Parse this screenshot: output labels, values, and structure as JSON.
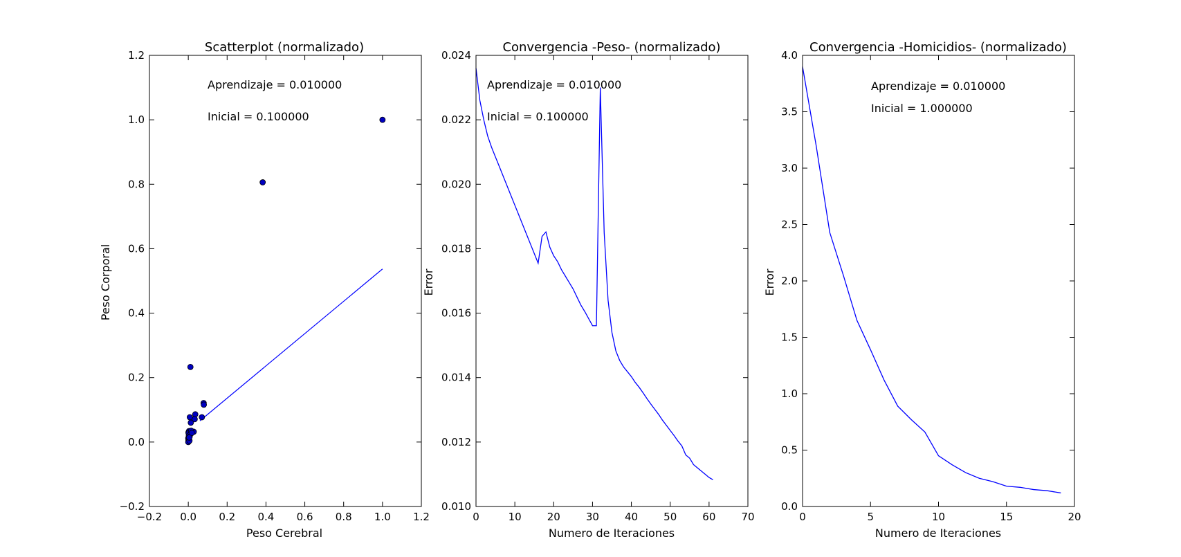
{
  "chart_data": [
    {
      "type": "scatter",
      "title": "Scatterplot (normalizado)",
      "xlabel": "Peso Cerebral",
      "ylabel": "Peso Corporal",
      "xlim": [
        -0.2,
        1.2
      ],
      "ylim": [
        -0.2,
        1.2
      ],
      "xticks": [
        -0.2,
        0.0,
        0.2,
        0.4,
        0.6,
        0.8,
        1.0,
        1.2
      ],
      "yticks": [
        -0.2,
        0.0,
        0.2,
        0.4,
        0.6,
        0.8,
        1.0,
        1.2
      ],
      "xtick_labels": [
        "−0.2",
        "0.0",
        "0.2",
        "0.4",
        "0.6",
        "0.8",
        "1.0",
        "1.2"
      ],
      "ytick_labels": [
        "−0.2",
        "0.0",
        "0.2",
        "0.4",
        "0.6",
        "0.8",
        "1.0",
        "1.2"
      ],
      "marker_color": "#0000bf",
      "line_color": "#0000ff",
      "points": [
        [
          1.0,
          1.0
        ],
        [
          0.383,
          0.806
        ],
        [
          0.011,
          0.233
        ],
        [
          0.079,
          0.121
        ],
        [
          0.08,
          0.116
        ],
        [
          0.07,
          0.077
        ],
        [
          0.036,
          0.086
        ],
        [
          0.033,
          0.071
        ],
        [
          0.028,
          0.032
        ],
        [
          0.013,
          0.06
        ],
        [
          0.008,
          0.077
        ],
        [
          0.004,
          0.034
        ],
        [
          0.001,
          0.03
        ],
        [
          0.002,
          0.027
        ],
        [
          0.01,
          0.024
        ],
        [
          0.003,
          0.02
        ],
        [
          0.007,
          0.017
        ],
        [
          0.0,
          0.012
        ],
        [
          0.004,
          0.009
        ],
        [
          0.001,
          0.006
        ],
        [
          0.002,
          0.002
        ],
        [
          0.0,
          0.0
        ],
        [
          0.006,
          0.004
        ],
        [
          0.015,
          0.035
        ],
        [
          0.018,
          0.028
        ],
        [
          0.005,
          0.014
        ]
      ],
      "fit_line": [
        [
          0.06,
          0.066
        ],
        [
          1.0,
          0.537
        ]
      ],
      "annotations": [
        "Aprendizaje = 0.010000",
        "Inicial = 0.100000"
      ]
    },
    {
      "type": "line",
      "title": "Convergencia -Peso- (normalizado)",
      "xlabel": "Numero de Iteraciones",
      "ylabel": "Error",
      "xlim": [
        0,
        70
      ],
      "ylim": [
        0.01,
        0.024
      ],
      "xticks": [
        0,
        10,
        20,
        30,
        40,
        50,
        60,
        70
      ],
      "yticks": [
        0.01,
        0.012,
        0.014,
        0.016,
        0.018,
        0.02,
        0.022,
        0.024
      ],
      "xtick_labels": [
        "0",
        "10",
        "20",
        "30",
        "40",
        "50",
        "60",
        "70"
      ],
      "ytick_labels": [
        "0.010",
        "0.012",
        "0.014",
        "0.016",
        "0.018",
        "0.020",
        "0.022",
        "0.024"
      ],
      "line_color": "#0000ff",
      "x": [
        0,
        1,
        2,
        3,
        4,
        5,
        6,
        7,
        8,
        9,
        10,
        11,
        12,
        13,
        14,
        15,
        16,
        17,
        18,
        19,
        20,
        21,
        22,
        23,
        24,
        25,
        26,
        27,
        28,
        29,
        30,
        31,
        32,
        33,
        34,
        35,
        36,
        37,
        38,
        39,
        40,
        41,
        42,
        43,
        44,
        45,
        46,
        47,
        48,
        49,
        50,
        51,
        52,
        53,
        54,
        55,
        56,
        57,
        58,
        59,
        60,
        61
      ],
      "y": [
        0.0236,
        0.0226,
        0.022,
        0.0215,
        0.02115,
        0.02085,
        0.02055,
        0.02025,
        0.01995,
        0.01965,
        0.01935,
        0.01905,
        0.01875,
        0.01845,
        0.01815,
        0.01785,
        0.01755,
        0.01838,
        0.01852,
        0.01805,
        0.01778,
        0.0176,
        0.01735,
        0.01715,
        0.01695,
        0.01675,
        0.0165,
        0.01625,
        0.01605,
        0.01583,
        0.01561,
        0.01561,
        0.023,
        0.0185,
        0.0164,
        0.0154,
        0.01483,
        0.01453,
        0.01433,
        0.01418,
        0.01403,
        0.01385,
        0.0137,
        0.01353,
        0.01335,
        0.01318,
        0.01302,
        0.01286,
        0.01268,
        0.01252,
        0.01236,
        0.0122,
        0.01203,
        0.01188,
        0.0116,
        0.0115,
        0.0113,
        0.0112,
        0.0111,
        0.011,
        0.0109,
        0.01083
      ],
      "annotations": [
        "Aprendizaje = 0.010000",
        "Inicial = 0.100000"
      ]
    },
    {
      "type": "line",
      "title": "Convergencia -Homicidios- (normalizado)",
      "xlabel": "Numero de Iteraciones",
      "ylabel": "Error",
      "xlim": [
        0,
        20
      ],
      "ylim": [
        0.0,
        4.0
      ],
      "xticks": [
        0,
        5,
        10,
        15,
        20
      ],
      "yticks": [
        0.0,
        0.5,
        1.0,
        1.5,
        2.0,
        2.5,
        3.0,
        3.5,
        4.0
      ],
      "xtick_labels": [
        "0",
        "5",
        "10",
        "15",
        "20"
      ],
      "ytick_labels": [
        "0.0",
        "0.5",
        "1.0",
        "1.5",
        "2.0",
        "2.5",
        "3.0",
        "3.5",
        "4.0"
      ],
      "line_color": "#0000ff",
      "x": [
        0,
        1,
        2,
        3,
        4,
        5,
        6,
        7,
        8,
        9,
        10,
        11,
        12,
        13,
        14,
        15,
        16,
        17,
        18,
        19
      ],
      "y": [
        3.9,
        3.2,
        2.43,
        2.05,
        1.65,
        1.39,
        1.12,
        0.89,
        0.77,
        0.66,
        0.45,
        0.37,
        0.3,
        0.25,
        0.22,
        0.18,
        0.17,
        0.15,
        0.14,
        0.12
      ],
      "annotations": [
        "Aprendizaje = 0.010000",
        "Inicial = 1.000000"
      ]
    }
  ]
}
